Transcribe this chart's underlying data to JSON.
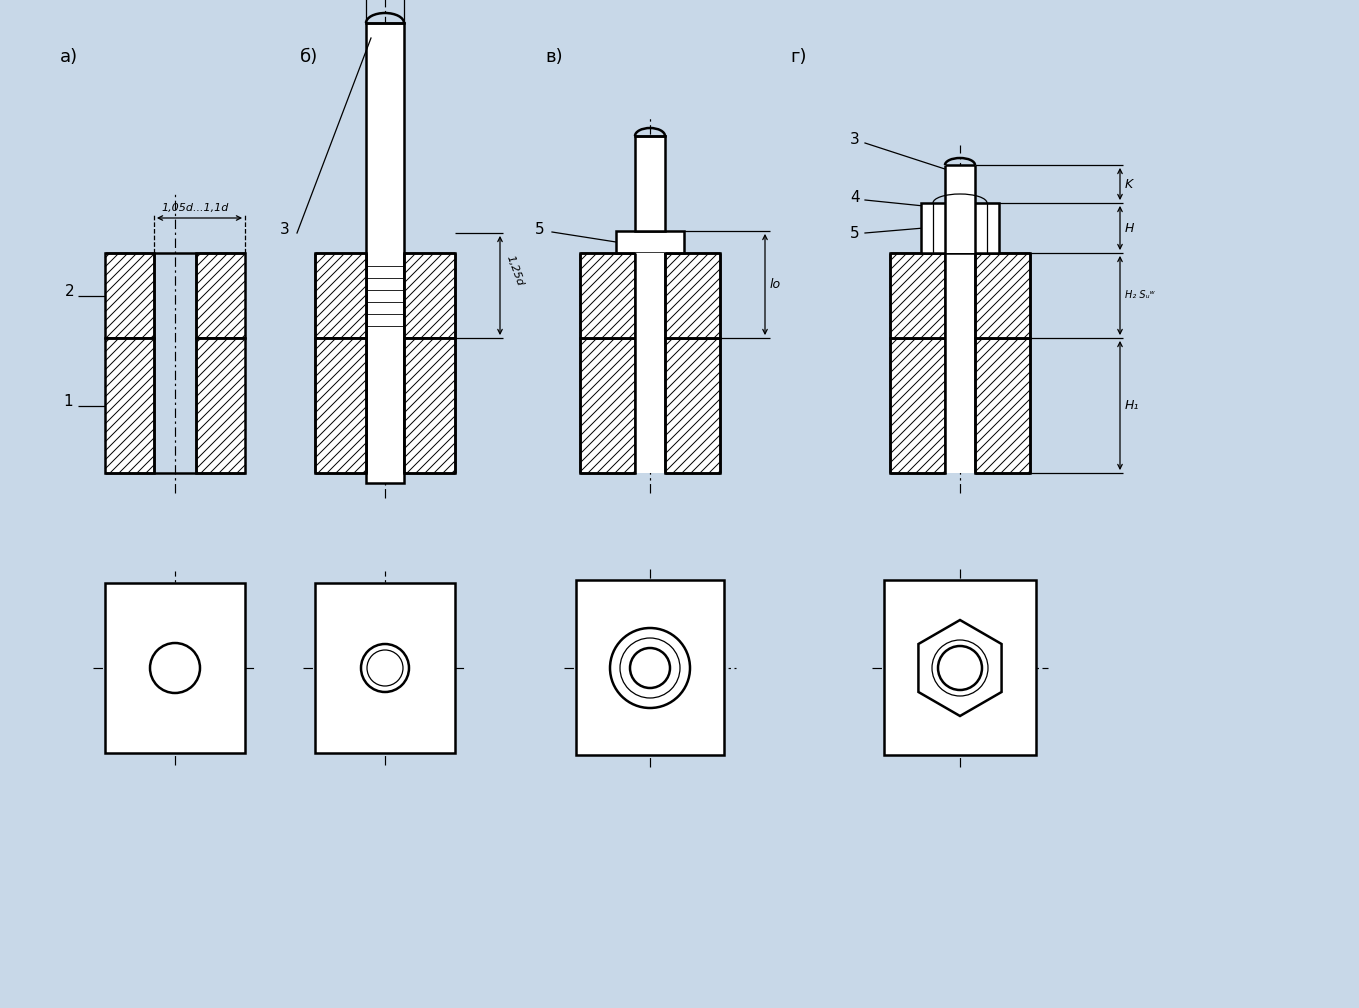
{
  "bg_color": "#c8d8e8",
  "lc": "#000000",
  "fig_w": 13.59,
  "fig_h": 10.08,
  "dpi": 100,
  "section_labels": [
    "а)",
    "б)",
    "в)",
    "г)"
  ],
  "section_label_fs": 13
}
